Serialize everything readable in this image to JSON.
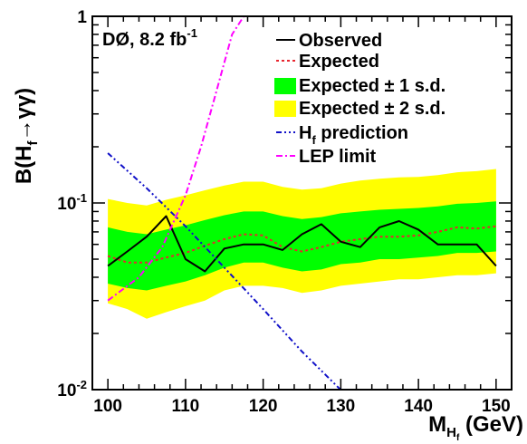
{
  "chart_data": {
    "type": "line",
    "y_scale": "log",
    "xlim": [
      98,
      152
    ],
    "ylim": [
      0.01,
      1
    ],
    "x_ticks": [
      100,
      110,
      120,
      130,
      140,
      150
    ],
    "x_tick_labels": [
      "100",
      "110",
      "120",
      "130",
      "140",
      "150"
    ],
    "y_ticks": [
      0.01,
      0.1,
      1
    ],
    "y_tick_labels": [
      {
        "base": "10",
        "exp": "-2"
      },
      {
        "base": "10",
        "exp": "-1"
      },
      {
        "base": "1",
        "exp": ""
      }
    ],
    "xlabel": {
      "main": "M",
      "sub": "H",
      "subsub": "f",
      "rest": " (GeV)"
    },
    "ylabel": {
      "main": "B(H",
      "sub": "f",
      "rest": "→γγ)"
    },
    "annotation": {
      "main": "DØ, 8.2 fb",
      "sup": "-1"
    },
    "legend_position": "top-right",
    "legend": {
      "observed": "Observed",
      "expected": "Expected",
      "band1": "Expected ± 1 s.d.",
      "band2": "Expected ± 2 s.d.",
      "hf_main": "H",
      "hf_sub": "f",
      "hf_rest": " prediction",
      "lep": "LEP limit"
    },
    "colors": {
      "observed": "#000000",
      "expected": "#e8262f",
      "band1": "#00ff00",
      "band2": "#ffff00",
      "hf_prediction": "#1010c8",
      "lep_limit": "#ff00ff"
    },
    "series": [
      {
        "key": "observed",
        "x": [
          100,
          102.5,
          105,
          107.5,
          110,
          112.5,
          115,
          117.5,
          120,
          122.5,
          125,
          127.5,
          130,
          132.5,
          135,
          137.5,
          140,
          142.5,
          145,
          147.5,
          150
        ],
        "values": [
          0.046,
          0.055,
          0.066,
          0.085,
          0.05,
          0.043,
          0.057,
          0.06,
          0.06,
          0.056,
          0.068,
          0.077,
          0.062,
          0.058,
          0.074,
          0.08,
          0.072,
          0.06,
          0.06,
          0.06,
          0.046
        ]
      },
      {
        "key": "expected",
        "x": [
          100,
          102.5,
          105,
          107.5,
          110,
          112.5,
          115,
          117.5,
          120,
          122.5,
          125,
          127.5,
          130,
          132.5,
          135,
          137.5,
          140,
          142.5,
          145,
          147.5,
          150
        ],
        "values": [
          0.052,
          0.048,
          0.048,
          0.051,
          0.054,
          0.059,
          0.064,
          0.068,
          0.067,
          0.058,
          0.055,
          0.058,
          0.062,
          0.064,
          0.066,
          0.066,
          0.067,
          0.07,
          0.074,
          0.073,
          0.075
        ]
      },
      {
        "key": "hf_prediction",
        "x": [
          100,
          105,
          110,
          115,
          120,
          125,
          130.5
        ],
        "values": [
          0.185,
          0.12,
          0.075,
          0.045,
          0.027,
          0.016,
          0.0095
        ]
      },
      {
        "key": "lep_limit",
        "x": [
          100,
          104,
          107,
          110,
          112,
          114,
          116,
          117.5
        ],
        "values": [
          0.03,
          0.04,
          0.058,
          0.11,
          0.2,
          0.4,
          0.8,
          1.0
        ]
      }
    ],
    "bands": {
      "x": [
        100,
        102.5,
        105,
        107.5,
        110,
        112.5,
        115,
        117.5,
        120,
        122.5,
        125,
        127.5,
        130,
        132.5,
        135,
        137.5,
        140,
        142.5,
        145,
        147.5,
        150
      ],
      "minus2": [
        0.029,
        0.027,
        0.024,
        0.026,
        0.028,
        0.03,
        0.034,
        0.036,
        0.036,
        0.035,
        0.033,
        0.034,
        0.036,
        0.037,
        0.038,
        0.039,
        0.039,
        0.04,
        0.041,
        0.041,
        0.042
      ],
      "minus1": [
        0.037,
        0.035,
        0.034,
        0.036,
        0.038,
        0.041,
        0.045,
        0.048,
        0.048,
        0.045,
        0.043,
        0.044,
        0.047,
        0.048,
        0.05,
        0.05,
        0.051,
        0.052,
        0.054,
        0.054,
        0.055
      ],
      "plus1": [
        0.074,
        0.07,
        0.068,
        0.072,
        0.076,
        0.081,
        0.086,
        0.09,
        0.09,
        0.085,
        0.082,
        0.084,
        0.088,
        0.09,
        0.092,
        0.093,
        0.094,
        0.096,
        0.099,
        0.1,
        0.102
      ],
      "plus2": [
        0.105,
        0.1,
        0.097,
        0.104,
        0.11,
        0.117,
        0.124,
        0.13,
        0.13,
        0.122,
        0.118,
        0.12,
        0.127,
        0.132,
        0.135,
        0.137,
        0.138,
        0.141,
        0.146,
        0.148,
        0.152
      ]
    }
  }
}
